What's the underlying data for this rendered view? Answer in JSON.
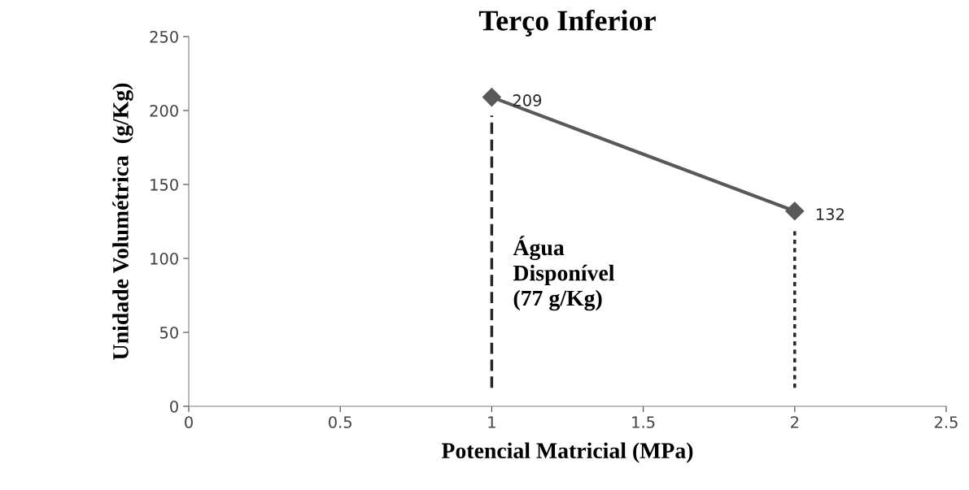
{
  "chart_data": {
    "type": "line",
    "title": "Terço Inferior",
    "xlabel": "Potencial Matricial (MPa)",
    "ylabel": "Unidade Volumétrica  (g/Kg)",
    "xlim": [
      0,
      2.5
    ],
    "xticks": [
      0,
      0.5,
      1,
      1.5,
      2,
      2.5
    ],
    "ylim": [
      0,
      250
    ],
    "yticks": [
      0,
      50,
      100,
      150,
      200,
      250
    ],
    "grid": false,
    "legend": false,
    "series": [
      {
        "x": [
          1,
          2
        ],
        "values": [
          209,
          132
        ],
        "color": "#595959",
        "marker": "diamond",
        "line_style": "solid",
        "value_labels": [
          "209",
          "132"
        ]
      }
    ],
    "ref_lines": [
      {
        "axis": "x",
        "value": 1,
        "color": "#262626",
        "line_style": "dashed"
      },
      {
        "axis": "x",
        "value": 2,
        "color": "#262626",
        "line_style": "dotted"
      }
    ],
    "annotations": [
      "Água\nDisponível\n(77 g/Kg)"
    ]
  }
}
